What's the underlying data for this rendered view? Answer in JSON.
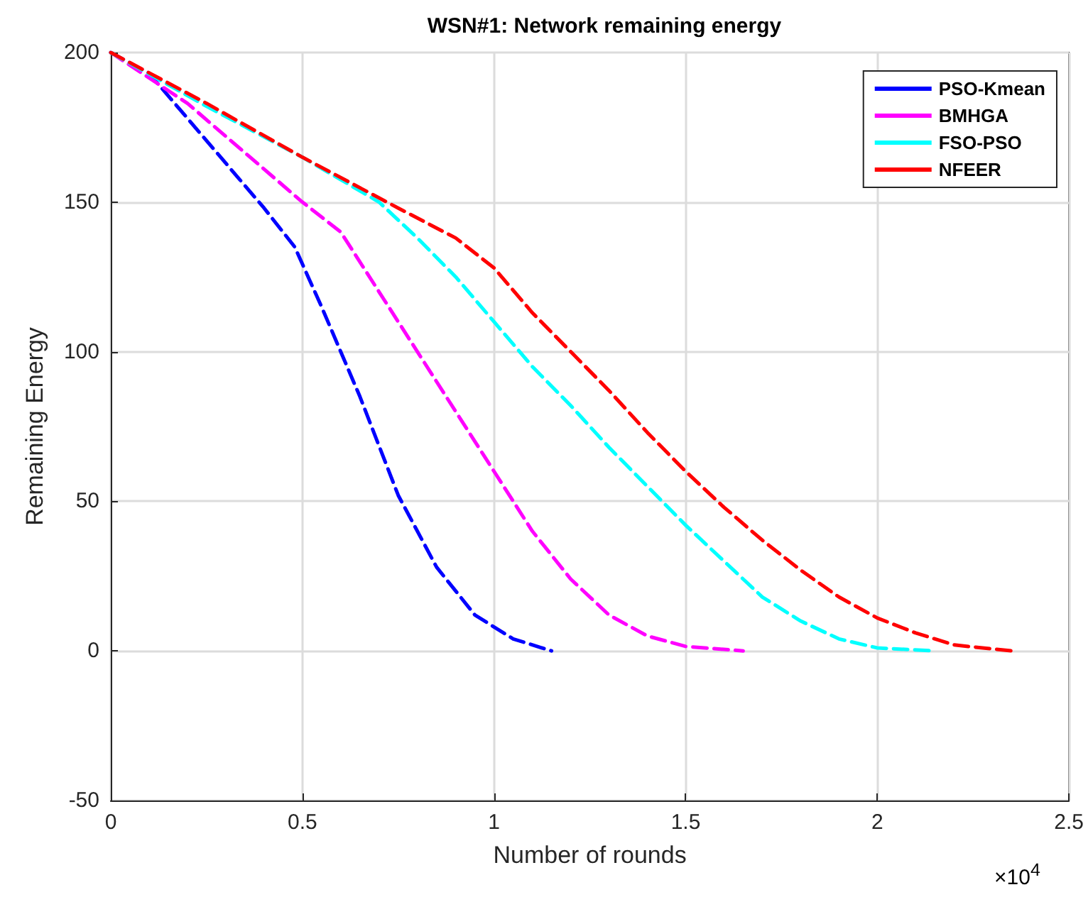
{
  "chart_data": {
    "type": "line",
    "title": "WSN#1: Network remaining energy",
    "xlabel": "Number of rounds",
    "ylabel": "Remaining Energy",
    "annotations": [
      "×10$^{4}$"
    ],
    "xlim": [
      0,
      2.5
    ],
    "xticks": [
      0,
      0.5,
      1,
      1.5,
      2,
      2.5
    ],
    "ylim": [
      -50,
      200
    ],
    "yticks": [
      -50,
      0,
      50,
      100,
      150,
      200
    ],
    "grid": true,
    "legend": "top right",
    "marker": "none",
    "line_style": "dashed",
    "series": [
      {
        "name": "PSO-Kmean",
        "color": "#0000ff",
        "x": [
          0,
          0.1,
          0.2,
          0.3,
          0.4,
          0.48,
          0.55,
          0.65,
          0.75,
          0.85,
          0.95,
          1.05,
          1.15
        ],
        "values": [
          200,
          193,
          178,
          163,
          148,
          135,
          115,
          85,
          52,
          28,
          12,
          4,
          0
        ]
      },
      {
        "name": "BMHGA",
        "color": "#ff00ff",
        "x": [
          0,
          0.2,
          0.4,
          0.5,
          0.6,
          0.7,
          0.8,
          0.9,
          1.0,
          1.1,
          1.2,
          1.3,
          1.4,
          1.5,
          1.65
        ],
        "values": [
          200,
          183,
          161,
          150,
          140,
          120,
          100,
          80,
          60,
          40,
          24,
          12,
          5,
          1.5,
          0
        ]
      },
      {
        "name": "FSO-PSO",
        "color": "#00ffff",
        "x": [
          0,
          0.25,
          0.5,
          0.7,
          0.8,
          0.9,
          1.0,
          1.1,
          1.2,
          1.3,
          1.4,
          1.5,
          1.6,
          1.7,
          1.8,
          1.9,
          2.0,
          2.15
        ],
        "values": [
          200,
          182,
          165,
          150,
          138,
          125,
          110,
          95,
          82,
          68,
          55,
          42,
          30,
          18,
          10,
          4,
          1,
          0
        ]
      },
      {
        "name": "NFEER",
        "color": "#ff0000",
        "x": [
          0,
          0.25,
          0.5,
          0.75,
          0.9,
          1.0,
          1.1,
          1.2,
          1.3,
          1.4,
          1.5,
          1.6,
          1.7,
          1.8,
          1.9,
          2.0,
          2.1,
          2.2,
          2.35
        ],
        "values": [
          200,
          183,
          165,
          148,
          138,
          128,
          113,
          100,
          87,
          73,
          60,
          48,
          37,
          27,
          18,
          11,
          6,
          2,
          0
        ]
      }
    ]
  }
}
